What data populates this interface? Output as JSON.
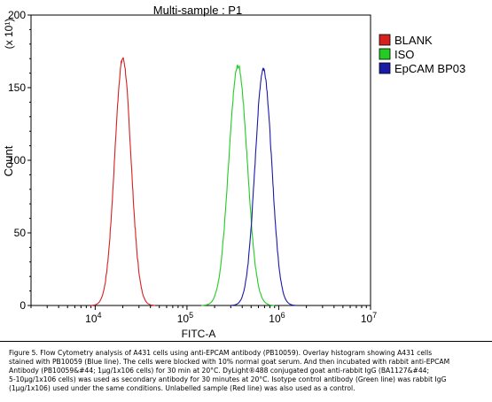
{
  "chart_data": {
    "type": "line",
    "title": "Multi-sample : P1",
    "xlabel": "FITC-A",
    "ylabel": "Count",
    "y_multiplier_label": "(x 10¹)",
    "xscale": "log",
    "xlim": [
      2000,
      10000000
    ],
    "ylim": [
      0,
      200
    ],
    "xticks": [
      {
        "value": 10000,
        "base": "10",
        "exp": "4"
      },
      {
        "value": 100000,
        "base": "10",
        "exp": "5"
      },
      {
        "value": 1000000,
        "base": "10",
        "exp": "6"
      },
      {
        "value": 10000000,
        "base": "10",
        "exp": "7"
      }
    ],
    "yticks": [
      0,
      50,
      100,
      150,
      200
    ],
    "grid": false,
    "legend_position": "right",
    "series": [
      {
        "name": "BLANK",
        "color": "#d62020",
        "peak_x": 20000,
        "peak_y": 170,
        "log_width": 0.088
      },
      {
        "name": "ISO",
        "color": "#22cc22",
        "peak_x": 360000,
        "peak_y": 165,
        "log_width": 0.1
      },
      {
        "name": "EpCAM BP03",
        "color": "#1a1aa8",
        "peak_x": 680000,
        "peak_y": 163,
        "log_width": 0.09
      }
    ]
  },
  "caption": "Figure 5. Flow Cytometry analysis of A431 cells using anti-EPCAM antibody (PB10059).  Overlay histogram showing A431 cells\nstained with PB10059 (Blue line). The cells were blocked with 10% normal goat serum. And then incubated with rabbit anti-EPCAM\nAntibody (PB10059&#44; 1μg/1x106 cells) for 30 min at 20°C. DyLight®488 conjugated goat anti-rabbit IgG (BA1127&#44;\n5-10μg/1x106 cells) was used as secondary antibody for 30 minutes at 20°C. Isotype control antibody (Green line) was rabbit IgG\n(1μg/1x106) used under the same conditions. Unlabelled sample (Red line) was also used as a control."
}
